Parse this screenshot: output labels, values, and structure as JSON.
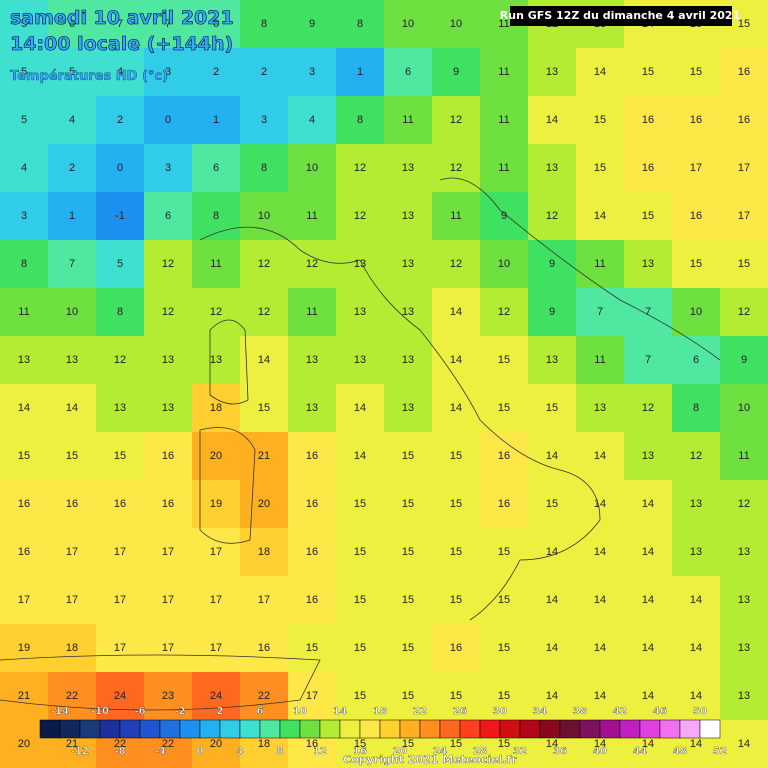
{
  "header": {
    "date": "samedi 10 avril 2021",
    "time": "14:00 locale (+144h)",
    "field": "Températures HD (°c)",
    "run": "Run GFS 12Z du dimanche 4 avril 2021"
  },
  "grid": {
    "rows": [
      [
        5,
        6,
        7,
        7,
        6,
        8,
        9,
        8,
        10,
        10,
        11,
        12,
        13,
        14,
        15,
        15
      ],
      [
        5,
        5,
        4,
        3,
        2,
        2,
        3,
        1,
        6,
        9,
        11,
        13,
        14,
        15,
        15,
        16
      ],
      [
        5,
        4,
        2,
        0,
        1,
        3,
        4,
        8,
        11,
        12,
        11,
        14,
        15,
        16,
        16,
        16
      ],
      [
        4,
        2,
        0,
        3,
        6,
        8,
        10,
        12,
        13,
        12,
        11,
        13,
        15,
        16,
        17,
        17
      ],
      [
        3,
        1,
        -1,
        6,
        8,
        10,
        11,
        12,
        13,
        11,
        9,
        12,
        14,
        15,
        16,
        17
      ],
      [
        8,
        7,
        5,
        12,
        11,
        12,
        12,
        13,
        13,
        12,
        10,
        9,
        11,
        13,
        15,
        15
      ],
      [
        11,
        10,
        8,
        12,
        12,
        12,
        11,
        13,
        13,
        14,
        12,
        9,
        7,
        7,
        10,
        12
      ],
      [
        13,
        13,
        12,
        13,
        13,
        14,
        13,
        13,
        13,
        14,
        15,
        13,
        11,
        7,
        6,
        9
      ],
      [
        14,
        14,
        13,
        13,
        18,
        15,
        13,
        14,
        13,
        14,
        15,
        15,
        13,
        12,
        8,
        10
      ],
      [
        15,
        15,
        15,
        16,
        20,
        21,
        16,
        14,
        15,
        15,
        16,
        14,
        14,
        13,
        12,
        11
      ],
      [
        16,
        16,
        16,
        16,
        19,
        20,
        16,
        15,
        15,
        15,
        16,
        15,
        14,
        14,
        13,
        12
      ],
      [
        16,
        17,
        17,
        17,
        17,
        18,
        16,
        15,
        15,
        15,
        15,
        14,
        14,
        14,
        13,
        13
      ],
      [
        17,
        17,
        17,
        17,
        17,
        17,
        16,
        15,
        15,
        15,
        15,
        14,
        14,
        14,
        14,
        13
      ],
      [
        19,
        18,
        17,
        17,
        17,
        16,
        15,
        15,
        15,
        16,
        15,
        14,
        14,
        14,
        14,
        13
      ],
      [
        21,
        22,
        24,
        23,
        24,
        22,
        17,
        15,
        15,
        15,
        15,
        14,
        14,
        14,
        14,
        13
      ],
      [
        20,
        21,
        22,
        22,
        20,
        18,
        16,
        15,
        15,
        15,
        15,
        14,
        14,
        14,
        14,
        14
      ]
    ]
  },
  "colorbar": {
    "min": -16,
    "max": 52,
    "step": 2,
    "colors": [
      "#0a1a4a",
      "#10285e",
      "#1a3a7a",
      "#1c2f9a",
      "#2040b8",
      "#1f55d0",
      "#2070e0",
      "#1e90f0",
      "#22b0f0",
      "#30cce8",
      "#40e0d0",
      "#50e8a0",
      "#40e060",
      "#6ee040",
      "#b4ec34",
      "#eef040",
      "#fde848",
      "#ffd030",
      "#ffb020",
      "#ff9020",
      "#ff6820",
      "#ff4020",
      "#f01818",
      "#d01010",
      "#b00818",
      "#880820",
      "#701030",
      "#801060",
      "#a01090",
      "#c020c0",
      "#e040e0",
      "#f070f0",
      "#f8a8f8",
      "#ffffff"
    ],
    "top_ticks": [
      -14,
      -10,
      -6,
      -2,
      2,
      6,
      10,
      14,
      18,
      22,
      26,
      30,
      34,
      38,
      42,
      46,
      50
    ],
    "bottom_ticks": [
      -12,
      -8,
      -4,
      0,
      4,
      8,
      12,
      16,
      20,
      24,
      28,
      32,
      36,
      40,
      44,
      48,
      52
    ]
  },
  "footer": {
    "copyright": "Copyright 2021 Meteociel.fr"
  }
}
